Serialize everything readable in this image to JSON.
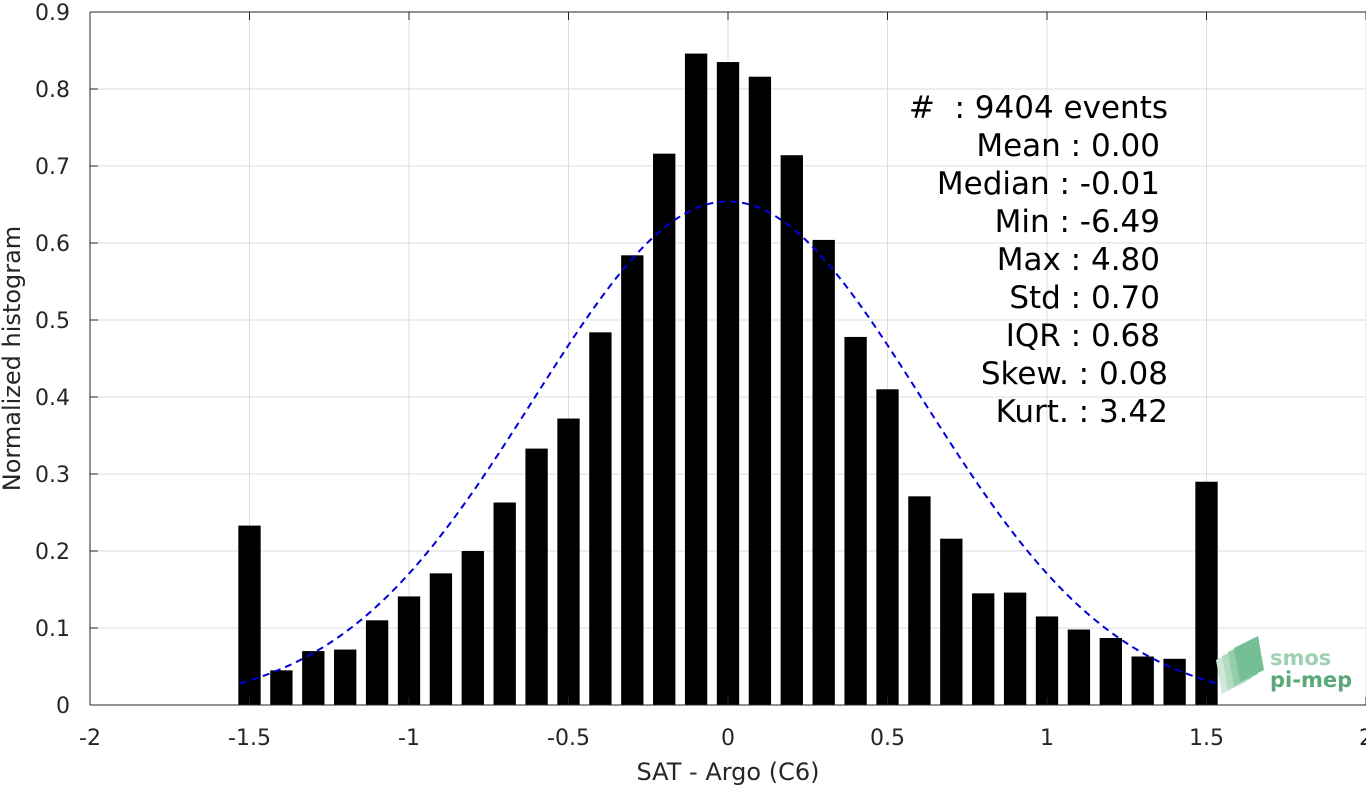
{
  "chart_data": {
    "type": "bar",
    "xlabel": "SAT - Argo (C6)",
    "ylabel": "Normalized histogram",
    "xlim": [
      -2,
      2
    ],
    "ylim": [
      0,
      0.9
    ],
    "xticks": [
      -2,
      -1.5,
      -1,
      -0.5,
      0,
      0.5,
      1,
      1.5,
      2
    ],
    "xtick_labels": [
      "-2",
      "-1.5",
      "-1",
      "-0.5",
      "0",
      "0.5",
      "1",
      "1.5",
      "2"
    ],
    "yticks": [
      0,
      0.1,
      0.2,
      0.3,
      0.4,
      0.5,
      0.6,
      0.7,
      0.8,
      0.9
    ],
    "ytick_labels": [
      "0",
      "0.1",
      "0.2",
      "0.3",
      "0.4",
      "0.5",
      "0.6",
      "0.7",
      "0.8",
      "0.9"
    ],
    "grid": true,
    "bar_color": "#000000",
    "bar_width": 0.07,
    "bins": [
      -1.5,
      -1.4,
      -1.3,
      -1.2,
      -1.1,
      -1.0,
      -0.9,
      -0.8,
      -0.7,
      -0.6,
      -0.5,
      -0.4,
      -0.3,
      -0.2,
      -0.1,
      0.0,
      0.1,
      0.2,
      0.3,
      0.4,
      0.5,
      0.6,
      0.7,
      0.8,
      0.9,
      1.0,
      1.1,
      1.2,
      1.3,
      1.4,
      1.5
    ],
    "values": [
      0.233,
      0.045,
      0.07,
      0.072,
      0.11,
      0.141,
      0.171,
      0.2,
      0.263,
      0.333,
      0.372,
      0.484,
      0.584,
      0.716,
      0.846,
      0.835,
      0.816,
      0.714,
      0.604,
      0.478,
      0.41,
      0.271,
      0.216,
      0.145,
      0.146,
      0.115,
      0.098,
      0.087,
      0.063,
      0.06,
      0.29
    ],
    "fit": {
      "style": "dashed",
      "color": "#0000dd",
      "kind": "gaussian",
      "mean": 0.0,
      "std": 0.61,
      "x_range": [
        -1.53,
        1.53
      ]
    },
    "stats": [
      "#  : 9404 events",
      "Mean : 0.00",
      "Median : -0.01",
      "Min : -6.49",
      "Max : 4.80",
      "Std : 0.70",
      "IQR : 0.68",
      "Skew. : 0.08",
      "Kurt. : 3.42"
    ]
  },
  "logo": {
    "line1": "smos",
    "line2": "pi-mep",
    "color": "#5aa878"
  }
}
